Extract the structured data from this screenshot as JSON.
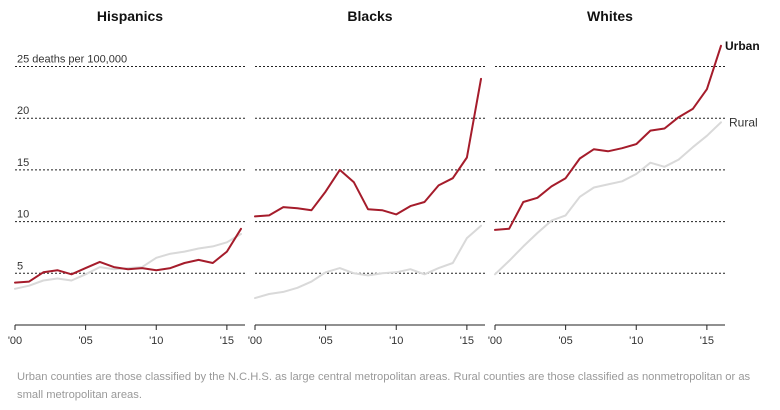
{
  "chart_data": [
    {
      "type": "line",
      "title": "Hispanics",
      "x": [
        2000,
        2001,
        2002,
        2003,
        2004,
        2005,
        2006,
        2007,
        2008,
        2009,
        2010,
        2011,
        2012,
        2013,
        2014,
        2015,
        2016
      ],
      "series": [
        {
          "name": "Urban",
          "color": "#a51c2b",
          "values": [
            4.1,
            4.2,
            5.1,
            5.3,
            4.9,
            5.5,
            6.1,
            5.6,
            5.4,
            5.5,
            5.3,
            5.5,
            6.0,
            6.3,
            6.0,
            7.1,
            9.3
          ]
        },
        {
          "name": "Rural",
          "color": "#d9d9d9",
          "values": [
            3.5,
            3.8,
            4.3,
            4.5,
            4.3,
            4.9,
            5.6,
            5.4,
            5.5,
            5.6,
            6.5,
            6.9,
            7.1,
            7.4,
            7.6,
            8.0,
            8.8
          ]
        }
      ],
      "ylim": [
        0,
        27
      ],
      "yticks": [
        "25 deaths per 100,000",
        "20",
        "15",
        "10",
        "5"
      ],
      "xticks": [
        "'00",
        "'05",
        "'10",
        "'15"
      ]
    },
    {
      "type": "line",
      "title": "Blacks",
      "x": [
        2000,
        2001,
        2002,
        2003,
        2004,
        2005,
        2006,
        2007,
        2008,
        2009,
        2010,
        2011,
        2012,
        2013,
        2014,
        2015,
        2016
      ],
      "series": [
        {
          "name": "Urban",
          "color": "#a51c2b",
          "values": [
            10.5,
            10.6,
            11.4,
            11.3,
            11.1,
            12.9,
            15.0,
            13.8,
            11.2,
            11.1,
            10.7,
            11.5,
            11.9,
            13.5,
            14.2,
            16.2,
            23.8
          ]
        },
        {
          "name": "Rural",
          "color": "#d9d9d9",
          "values": [
            2.6,
            3.0,
            3.2,
            3.6,
            4.2,
            5.1,
            5.5,
            5.0,
            4.8,
            5.0,
            5.1,
            5.4,
            4.9,
            5.5,
            6.0,
            8.4,
            9.6
          ]
        }
      ],
      "ylim": [
        0,
        27
      ],
      "yticks": [],
      "xticks": [
        "'00",
        "'05",
        "'10",
        "'15"
      ]
    },
    {
      "type": "line",
      "title": "Whites",
      "x": [
        2000,
        2001,
        2002,
        2003,
        2004,
        2005,
        2006,
        2007,
        2008,
        2009,
        2010,
        2011,
        2012,
        2013,
        2014,
        2015,
        2016
      ],
      "series": [
        {
          "name": "Urban",
          "color": "#a51c2b",
          "values": [
            9.2,
            9.3,
            11.9,
            12.3,
            13.4,
            14.2,
            16.1,
            17.0,
            16.8,
            17.1,
            17.5,
            18.8,
            19.0,
            20.1,
            20.9,
            22.8,
            27.0
          ]
        },
        {
          "name": "Rural",
          "color": "#d9d9d9",
          "values": [
            4.9,
            6.2,
            7.6,
            8.9,
            10.1,
            10.6,
            12.4,
            13.3,
            13.6,
            13.9,
            14.6,
            15.7,
            15.3,
            16.0,
            17.2,
            18.3,
            19.6
          ]
        }
      ],
      "ylim": [
        0,
        27
      ],
      "yticks": [],
      "xticks": [
        "'00",
        "'05",
        "'10",
        "'15"
      ],
      "series_labels": {
        "urban": "Urban",
        "rural": "Rural"
      }
    }
  ],
  "note": "Urban counties are those classified by the N.C.H.S. as large central metropolitan areas. Rural counties are those classified as nonmetropolitan or as small metropolitan areas."
}
